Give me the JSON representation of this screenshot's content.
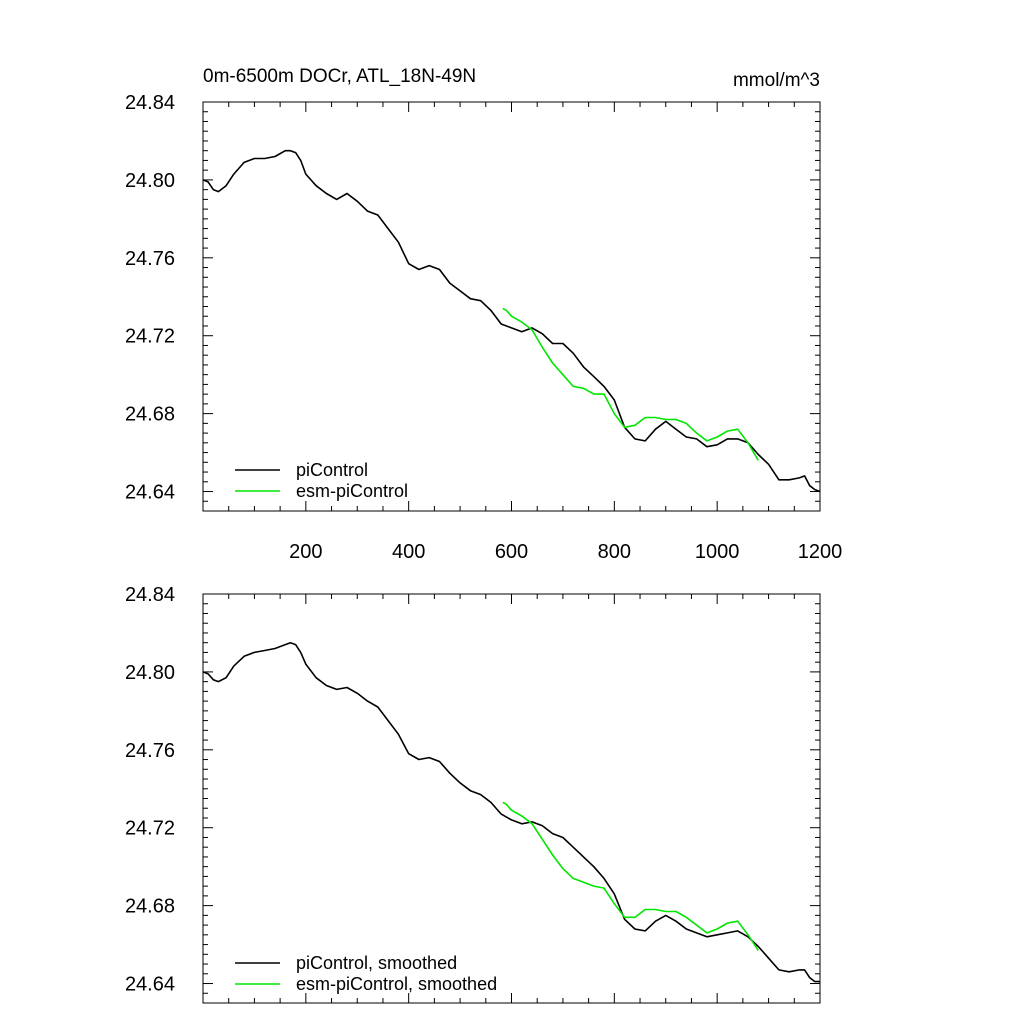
{
  "chart_data": [
    {
      "type": "line",
      "title": "0m-6500m DOCr, ATL_18N-49N",
      "units": "mmol/m^3",
      "xlim": [
        0,
        1200
      ],
      "ylim": [
        24.63,
        24.84
      ],
      "xticks": [
        200,
        400,
        600,
        800,
        1000,
        1200
      ],
      "xtick_labels": [
        "200",
        "400",
        "600",
        "800",
        "1000",
        "1200"
      ],
      "yticks": [
        24.64,
        24.68,
        24.72,
        24.76,
        24.8,
        24.84
      ],
      "ytick_labels": [
        "24.64",
        "24.68",
        "24.72",
        "24.76",
        "24.80",
        "24.84"
      ],
      "legend_position": "bottom-left",
      "series": [
        {
          "name": "piControl",
          "color": "#000000",
          "x": [
            0,
            10,
            20,
            30,
            45,
            60,
            80,
            100,
            120,
            140,
            160,
            170,
            180,
            190,
            200,
            220,
            240,
            260,
            280,
            300,
            320,
            340,
            360,
            380,
            400,
            420,
            440,
            460,
            480,
            500,
            520,
            540,
            560,
            580,
            600,
            620,
            640,
            660,
            680,
            700,
            720,
            740,
            760,
            780,
            800,
            820,
            840,
            860,
            880,
            900,
            920,
            940,
            960,
            980,
            1000,
            1020,
            1040,
            1060,
            1080,
            1100,
            1120,
            1140,
            1160,
            1170,
            1180,
            1190,
            1200
          ],
          "y": [
            24.8,
            24.799,
            24.795,
            24.794,
            24.797,
            24.803,
            24.809,
            24.811,
            24.811,
            24.812,
            24.815,
            24.815,
            24.814,
            24.81,
            24.803,
            24.797,
            24.793,
            24.79,
            24.793,
            24.789,
            24.784,
            24.782,
            24.775,
            24.768,
            24.757,
            24.754,
            24.756,
            24.754,
            24.747,
            24.743,
            24.739,
            24.738,
            24.733,
            24.726,
            24.724,
            24.722,
            24.724,
            24.721,
            24.716,
            24.716,
            24.711,
            24.704,
            24.699,
            24.694,
            24.687,
            24.673,
            24.667,
            24.666,
            24.672,
            24.676,
            24.672,
            24.668,
            24.667,
            24.663,
            24.664,
            24.667,
            24.667,
            24.665,
            24.659,
            24.654,
            24.646,
            24.646,
            24.647,
            24.648,
            24.643,
            24.641,
            24.64
          ]
        },
        {
          "name": "esm-piControl",
          "color": "#00e600",
          "x": [
            583,
            590,
            600,
            620,
            640,
            660,
            680,
            700,
            720,
            740,
            760,
            780,
            800,
            820,
            840,
            860,
            880,
            900,
            920,
            940,
            960,
            980,
            1000,
            1020,
            1040,
            1060,
            1080
          ],
          "y": [
            24.734,
            24.733,
            24.73,
            24.727,
            24.723,
            24.714,
            24.706,
            24.7,
            24.694,
            24.693,
            24.69,
            24.69,
            24.68,
            24.673,
            24.674,
            24.678,
            24.678,
            24.677,
            24.677,
            24.675,
            24.67,
            24.666,
            24.668,
            24.671,
            24.672,
            24.665,
            24.656
          ]
        }
      ]
    },
    {
      "type": "line",
      "title": "",
      "units": "",
      "xlim": [
        0,
        1200
      ],
      "ylim": [
        24.63,
        24.84
      ],
      "xticks": [
        200,
        400,
        600,
        800,
        1000,
        1200
      ],
      "xtick_labels": [],
      "yticks": [
        24.64,
        24.68,
        24.72,
        24.76,
        24.8,
        24.84
      ],
      "ytick_labels": [
        "24.64",
        "24.68",
        "24.72",
        "24.76",
        "24.80",
        "24.84"
      ],
      "legend_position": "bottom-left",
      "series": [
        {
          "name": "piControl, smoothed",
          "color": "#000000",
          "x": [
            0,
            10,
            20,
            30,
            45,
            60,
            80,
            100,
            120,
            140,
            160,
            170,
            180,
            190,
            200,
            220,
            240,
            260,
            280,
            300,
            320,
            340,
            360,
            380,
            400,
            420,
            440,
            460,
            480,
            500,
            520,
            540,
            560,
            580,
            600,
            620,
            640,
            660,
            680,
            700,
            720,
            740,
            760,
            780,
            800,
            820,
            840,
            860,
            880,
            900,
            920,
            940,
            960,
            980,
            1000,
            1020,
            1040,
            1060,
            1080,
            1100,
            1120,
            1140,
            1160,
            1170,
            1180,
            1190,
            1200
          ],
          "y": [
            24.8,
            24.799,
            24.796,
            24.795,
            24.797,
            24.803,
            24.808,
            24.81,
            24.811,
            24.812,
            24.814,
            24.815,
            24.814,
            24.81,
            24.804,
            24.797,
            24.793,
            24.791,
            24.792,
            24.789,
            24.785,
            24.782,
            24.775,
            24.768,
            24.758,
            24.755,
            24.756,
            24.754,
            24.748,
            24.743,
            24.739,
            24.737,
            24.733,
            24.727,
            24.724,
            24.722,
            24.723,
            24.721,
            24.717,
            24.715,
            24.71,
            24.705,
            24.7,
            24.694,
            24.686,
            24.673,
            24.668,
            24.667,
            24.672,
            24.675,
            24.672,
            24.668,
            24.666,
            24.664,
            24.665,
            24.666,
            24.667,
            24.664,
            24.659,
            24.653,
            24.647,
            24.646,
            24.647,
            24.647,
            24.643,
            24.641,
            24.641
          ]
        },
        {
          "name": "esm-piControl, smoothed",
          "color": "#00e600",
          "x": [
            583,
            590,
            600,
            620,
            640,
            660,
            680,
            700,
            720,
            740,
            760,
            780,
            800,
            820,
            840,
            860,
            880,
            900,
            920,
            940,
            960,
            980,
            1000,
            1020,
            1040,
            1060,
            1080
          ],
          "y": [
            24.733,
            24.732,
            24.729,
            24.726,
            24.722,
            24.714,
            24.706,
            24.699,
            24.694,
            24.692,
            24.69,
            24.689,
            24.681,
            24.674,
            24.674,
            24.678,
            24.678,
            24.677,
            24.677,
            24.674,
            24.67,
            24.666,
            24.668,
            24.671,
            24.672,
            24.665,
            24.657
          ]
        }
      ]
    }
  ]
}
